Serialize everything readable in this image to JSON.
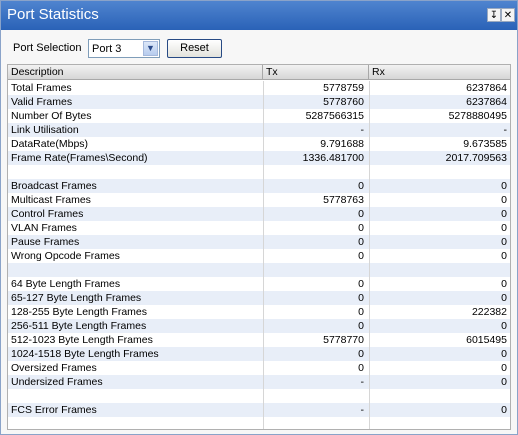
{
  "window": {
    "title": "Port Statistics"
  },
  "toolbar": {
    "port_label": "Port Selection",
    "port_value": "Port 3",
    "reset_label": "Reset"
  },
  "table": {
    "headers": [
      "Description",
      "Tx",
      "Rx"
    ],
    "rows": [
      [
        "Total Frames",
        "5778759",
        "6237864"
      ],
      [
        "Valid Frames",
        "5778760",
        "6237864"
      ],
      [
        "Number Of Bytes",
        "5287566315",
        "5278880495"
      ],
      [
        "Link Utilisation",
        "-",
        "-"
      ],
      [
        "DataRate(Mbps)",
        "9.791688",
        "9.673585"
      ],
      [
        "Frame Rate(Frames\\Second)",
        "1336.481700",
        "2017.709563"
      ],
      [
        "",
        "",
        ""
      ],
      [
        "Broadcast Frames",
        "0",
        "0"
      ],
      [
        "Multicast Frames",
        "5778763",
        "0"
      ],
      [
        "Control Frames",
        "0",
        "0"
      ],
      [
        "VLAN Frames",
        "0",
        "0"
      ],
      [
        "Pause Frames",
        "0",
        "0"
      ],
      [
        "Wrong Opcode Frames",
        "0",
        "0"
      ],
      [
        "",
        "",
        ""
      ],
      [
        "64 Byte Length Frames",
        "0",
        "0"
      ],
      [
        "65-127 Byte Length Frames",
        "0",
        "0"
      ],
      [
        "128-255 Byte Length Frames",
        "0",
        "222382"
      ],
      [
        "256-511 Byte Length Frames",
        "0",
        "0"
      ],
      [
        "512-1023 Byte Length Frames",
        "5778770",
        "6015495"
      ],
      [
        "1024-1518 Byte Length Frames",
        "0",
        "0"
      ],
      [
        "Oversized Frames",
        "0",
        "0"
      ],
      [
        "Undersized Frames",
        "-",
        "0"
      ],
      [
        "",
        "",
        ""
      ],
      [
        "FCS Error Frames",
        "-",
        "0"
      ],
      [
        "",
        "",
        ""
      ]
    ]
  }
}
